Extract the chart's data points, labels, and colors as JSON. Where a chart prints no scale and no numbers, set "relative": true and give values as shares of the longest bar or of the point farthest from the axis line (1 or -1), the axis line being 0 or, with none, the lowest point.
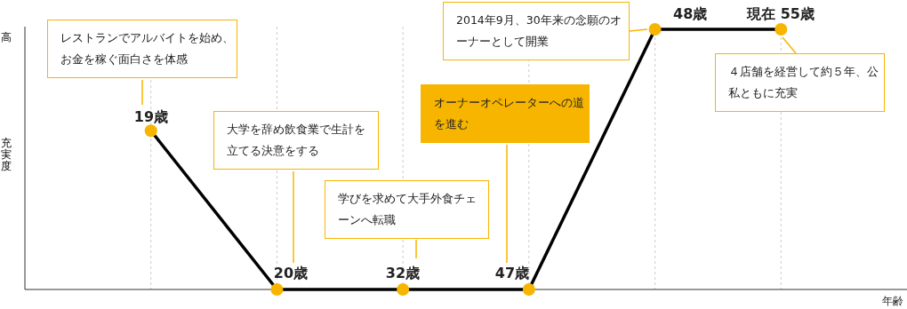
{
  "chart_data": {
    "type": "line",
    "relative": true,
    "categories": [
      null,
      null,
      null,
      null,
      null,
      null
    ],
    "series": [
      {
        "color": "#000000",
        "values": [
          0.61,
          0,
          0,
          0,
          1,
          1
        ],
        "colors": [
          "#f7b500",
          "#f7b500",
          "#f7b500",
          "#f7b500",
          "#f7b500",
          "#f7b500"
        ]
      }
    ],
    "marker": "circle",
    "grid": "x",
    "annotations": [
      "高",
      "充実度",
      "年齢",
      "レストランでアルバイトを始め、お金を稼ぐ面白さを体感",
      "大学を辞め飲食業で生計を立てる決意をする",
      "学びを求めて大手外食チェーンへ転職",
      "オーナーオペレーターへの道を進む",
      "2014年9月、30年来の念願のオーナーとして開業",
      "４店舗を経営して約５年、公私ともに充実",
      "19歳",
      "20歳",
      "32歳",
      "47歳",
      "48歳",
      "現在 55歳"
    ]
  }
}
